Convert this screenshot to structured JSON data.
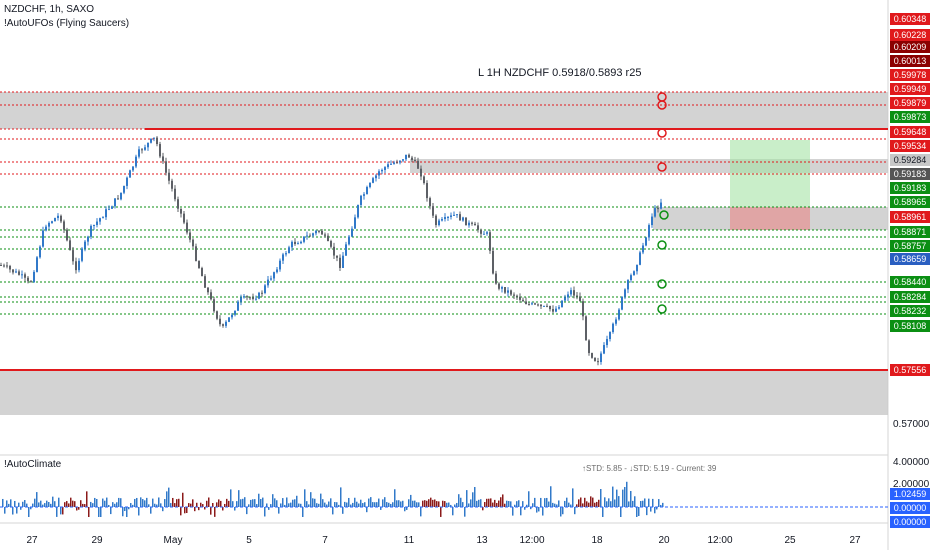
{
  "header": {
    "symbol_line": "NZDCHF, 1h, SAXO",
    "indicator_line": "!AutoUFOs (Flying Saucers)"
  },
  "annotation": "L 1H NZDCHF 0.5918/0.5893 r25",
  "sub_panel": {
    "title": "!AutoClimate",
    "stats": "↑STD: 5.85 - ↓STD: 5.19 - Current: 39",
    "axis_labels": [
      "4.00000",
      "2.00000"
    ],
    "value_tags": [
      {
        "text": "1.02459",
        "bg": "#2962ff",
        "fg": "#ffffff"
      },
      {
        "text": "0.00000",
        "bg": "#2962ff",
        "fg": "#ffffff"
      },
      {
        "text": "0.00000",
        "bg": "#2962ff",
        "fg": "#ffffff"
      }
    ]
  },
  "price_axis": {
    "plain_labels": [
      "0.57000"
    ],
    "tags": [
      {
        "text": "0.60348",
        "bg": "#e0191c"
      },
      {
        "text": "0.60228",
        "bg": "#e0191c"
      },
      {
        "text": "0.60209",
        "bg": "#8b0000"
      },
      {
        "text": "0.60013",
        "bg": "#8b0000"
      },
      {
        "text": "0.59978",
        "bg": "#e0191c"
      },
      {
        "text": "0.59949",
        "bg": "#e0191c"
      },
      {
        "text": "0.59879",
        "bg": "#e0191c"
      },
      {
        "text": "0.59873",
        "bg": "#0b8f13"
      },
      {
        "text": "0.59648",
        "bg": "#e0191c"
      },
      {
        "text": "0.59534",
        "bg": "#e0191c"
      },
      {
        "text": "0.59284",
        "bg": "#c8c8c8",
        "fg": "#131722"
      },
      {
        "text": "0.59183",
        "bg": "#555555"
      },
      {
        "text": "0.59183",
        "bg": "#0b8f13"
      },
      {
        "text": "0.58965",
        "bg": "#0b8f13"
      },
      {
        "text": "0.58961",
        "bg": "#e0191c"
      },
      {
        "text": "0.58871",
        "bg": "#0b8f13"
      },
      {
        "text": "0.58757",
        "bg": "#0b8f13"
      },
      {
        "text": "0.58659",
        "bg": "#2a5fc1"
      },
      {
        "text": "0.58440",
        "bg": "#0b8f13"
      },
      {
        "text": "0.58284",
        "bg": "#0b8f13"
      },
      {
        "text": "0.58232",
        "bg": "#0b8f13"
      },
      {
        "text": "0.58108",
        "bg": "#0b8f13"
      },
      {
        "text": "0.57556",
        "bg": "#e0191c"
      }
    ]
  },
  "time_axis": [
    "27",
    "29",
    "May",
    "5",
    "7",
    "11",
    "13",
    "12:00",
    "18",
    "20",
    "12:00",
    "25",
    "27"
  ],
  "colors": {
    "up": "#3179c9",
    "down": "#8b1a1a",
    "support": "#0b8f13",
    "resistance": "#e0191c",
    "zone": "#c8c8c8",
    "target": "#a5e3a5",
    "stop": "#e39a9a"
  },
  "chart_data": {
    "type": "candlestick",
    "symbol": "NZDCHF",
    "interval": "1h",
    "resistance_levels": [
      0.59949,
      0.59879,
      0.59648,
      0.59534,
      0.59284,
      0.59183
    ],
    "support_levels": [
      0.58965,
      0.58871,
      0.58757,
      0.5844,
      0.58284,
      0.58232,
      0.58108
    ],
    "current_price": 0.58659,
    "strong_level": 0.57556,
    "trade": {
      "entry": 0.5893,
      "target": 0.5918,
      "stop": 0.5885
    }
  }
}
